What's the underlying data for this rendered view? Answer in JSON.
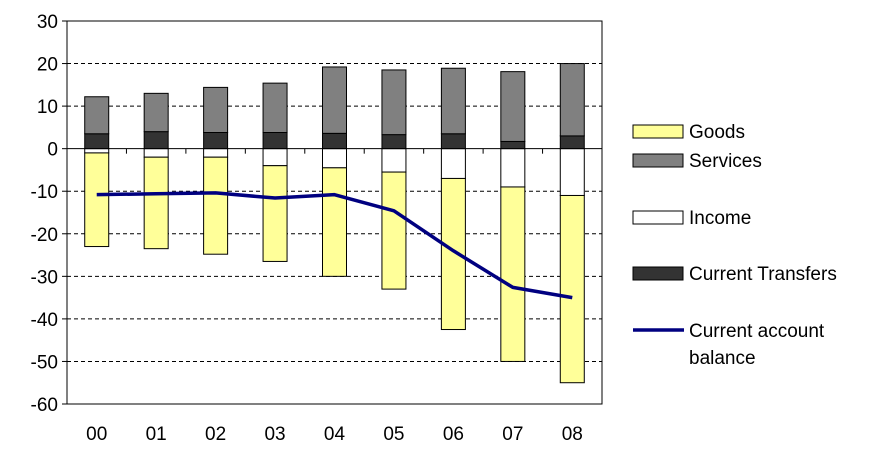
{
  "chart_data": {
    "type": "bar",
    "stacked": true,
    "categories": [
      "00",
      "01",
      "02",
      "03",
      "04",
      "05",
      "06",
      "07",
      "08"
    ],
    "ylim": [
      -60,
      30
    ],
    "yticks": [
      30,
      20,
      10,
      0,
      -10,
      -20,
      -30,
      -40,
      -50,
      -60
    ],
    "ytick_labels": [
      "30",
      "20",
      "10",
      "0",
      "-10",
      "-20",
      "-30",
      "-40",
      "-50",
      "-60"
    ],
    "grid": "horizontal dashed",
    "legend_position": "right",
    "series": [
      {
        "name": "Goods",
        "kind": "bar",
        "color": "#ffff99",
        "values": [
          -22.0,
          -21.5,
          -22.8,
          -22.5,
          -25.5,
          -27.5,
          -35.5,
          -41.0,
          -44.0
        ]
      },
      {
        "name": "Services",
        "kind": "bar",
        "color": "#808080",
        "values": [
          8.7,
          9.0,
          10.6,
          11.6,
          15.6,
          15.2,
          15.4,
          16.4,
          17.0
        ]
      },
      {
        "name": "Income",
        "kind": "bar",
        "color": "#ffffff",
        "values": [
          -1.0,
          -2.0,
          -2.0,
          -4.0,
          -4.5,
          -5.5,
          -7.0,
          -9.0,
          -11.0
        ]
      },
      {
        "name": "Current Transfers",
        "kind": "bar",
        "color": "#333333",
        "values": [
          3.5,
          4.0,
          3.8,
          3.8,
          3.6,
          3.3,
          3.5,
          1.7,
          3.0
        ]
      },
      {
        "name": "Current account balance",
        "kind": "line",
        "color": "#000080",
        "values": [
          -10.8,
          -10.6,
          -10.4,
          -11.6,
          -10.8,
          -14.6,
          -24.0,
          -32.6,
          -35.0
        ]
      }
    ],
    "legend_lines": {
      "Goods": [
        "Goods"
      ],
      "Services": [
        "Services"
      ],
      "Income": [
        "Income"
      ],
      "Current Transfers": [
        "Current Transfers"
      ],
      "Current account balance": [
        "Current account",
        "balance"
      ]
    }
  }
}
